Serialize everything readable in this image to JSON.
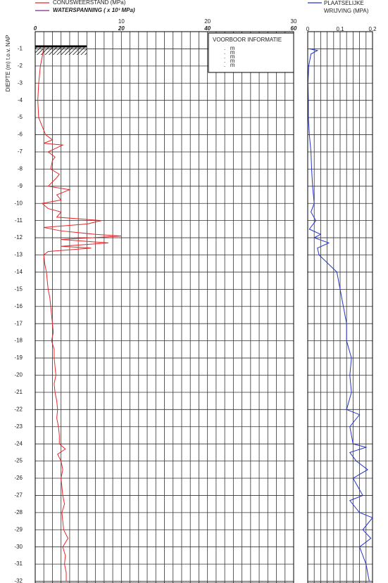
{
  "chart_data": [
    {
      "type": "line",
      "orientation": "vertical",
      "ylabel": "DIEPTE (m) t.o.v. NAP",
      "xlim": [
        0,
        30
      ],
      "xticks": [
        10,
        20,
        30
      ],
      "x2lim": [
        0,
        60
      ],
      "x2ticks": [
        0,
        20,
        40,
        60
      ],
      "xminor": [
        0,
        1,
        2,
        3,
        4,
        5,
        6,
        7,
        8,
        9,
        10,
        11,
        12,
        13,
        14,
        15,
        16,
        17,
        18,
        19,
        20,
        21,
        22,
        23,
        24,
        25,
        26,
        27,
        28,
        29,
        30
      ],
      "ylim": [
        0,
        -32.1
      ],
      "yticks": [
        -1,
        -2,
        -3,
        -4,
        -5,
        -6,
        -7,
        -8,
        -9,
        -10,
        -11,
        -12,
        -13,
        -14,
        -15,
        -16,
        -17,
        -18,
        -19,
        -20,
        -21,
        -22,
        -23,
        -24,
        -25,
        -26,
        -27,
        -28,
        -29,
        -30,
        -31,
        -32
      ],
      "show_ytick_labels": true,
      "series": [
        {
          "name": "CONUSWEERSTAND (MPa)",
          "color": "#e8262a",
          "y": [
            -0.9,
            -1.5,
            -2,
            -3,
            -4,
            -5,
            -5.5,
            -6,
            -6.3,
            -6.5,
            -6.6,
            -7,
            -7.3,
            -7.5,
            -8,
            -8.3,
            -8.5,
            -9,
            -9.2,
            -9.5,
            -9.8,
            -10,
            -10.3,
            -10.5,
            -10.8,
            -11,
            -11.2,
            -11.4,
            -11.6,
            -11.8,
            -11.9,
            -12.1,
            -12.3,
            -12.5,
            -12.6,
            -12.8,
            -13,
            -13.5,
            -14,
            -14.5,
            -15,
            -15.5,
            -16,
            -16.5,
            -17,
            -17.5,
            -18,
            -18.5,
            -19,
            -19.5,
            -20,
            -20.5,
            -21,
            -21.5,
            -22,
            -22.5,
            -23,
            -23.5,
            -24,
            -24.3,
            -24.6,
            -25,
            -25.5,
            -26,
            -26.5,
            -27,
            -27.5,
            -28,
            -28.5,
            -29,
            -29.5,
            -30,
            -30.5,
            -31,
            -31.5,
            -32
          ],
          "values": [
            1.0,
            0.8,
            0.6,
            0.4,
            0.3,
            0.4,
            0.8,
            1.2,
            2.0,
            1.0,
            3.2,
            1.5,
            2.3,
            2.0,
            1.8,
            2.8,
            2.5,
            1.5,
            4.0,
            2.5,
            3.0,
            0.8,
            1.5,
            3.0,
            2.5,
            7.7,
            6.0,
            1.0,
            3.0,
            7.0,
            10.0,
            3.0,
            8.5,
            3.0,
            6.5,
            1.5,
            1.0,
            1.1,
            1.3,
            1.4,
            1.5,
            1.7,
            1.8,
            1.9,
            2.0,
            2.1,
            1.9,
            2.2,
            2.2,
            2.3,
            2.4,
            2.2,
            2.3,
            2.5,
            2.6,
            2.5,
            2.7,
            2.8,
            2.8,
            3.5,
            2.6,
            3.0,
            3.2,
            3.0,
            3.1,
            3.2,
            3.4,
            3.1,
            3.2,
            3.3,
            3.8,
            3.2,
            3.5,
            3.4,
            3.6,
            3.6
          ]
        }
      ],
      "secondary_legend": {
        "label": "WATERSPANNING ( x 10³ MPa)",
        "color": "#7b2a8a"
      },
      "info_box": {
        "title": "VOORBOOR INFORMATIE",
        "rows": [
          ".   m",
          ".   m",
          ".   m",
          ".   m",
          ".   m"
        ]
      }
    },
    {
      "type": "line",
      "orientation": "vertical",
      "xlim": [
        0,
        0.2
      ],
      "xticks": [
        0,
        0.1,
        0.2
      ],
      "xminor": [
        0,
        0.02,
        0.04,
        0.06,
        0.08,
        0.1,
        0.12,
        0.14,
        0.16,
        0.18,
        0.2
      ],
      "ylim": [
        0,
        -32.1
      ],
      "yticks": [
        -1,
        -2,
        -3,
        -4,
        -5,
        -6,
        -7,
        -8,
        -9,
        -10,
        -11,
        -12,
        -13,
        -14,
        -15,
        -16,
        -17,
        -18,
        -19,
        -20,
        -21,
        -22,
        -23,
        -24,
        -25,
        -26,
        -27,
        -28,
        -29,
        -30,
        -31,
        -32
      ],
      "show_ytick_labels": false,
      "series": [
        {
          "name": [
            "PLAATSELIJKE",
            "WRIJVING (MPA)"
          ],
          "color": "#2233cc",
          "y": [
            -1,
            -1.1,
            -1.3,
            -2,
            -3,
            -4,
            -5,
            -6,
            -7,
            -8,
            -9,
            -10,
            -10.5,
            -11,
            -11.5,
            -11.8,
            -12,
            -12.3,
            -12.6,
            -13,
            -14,
            -15,
            -16,
            -17,
            -18,
            -19,
            -20,
            -21,
            -22,
            -22.3,
            -23,
            -24,
            -24.2,
            -24.5,
            -25,
            -25.5,
            -26,
            -27,
            -27.3,
            -28,
            -28.3,
            -29,
            -29.5,
            -30,
            -31,
            -32
          ],
          "values": [
            0.005,
            0.03,
            0.01,
            0.003,
            0.001,
            0.002,
            0.002,
            0.005,
            0.01,
            0.012,
            0.015,
            0.02,
            0.01,
            0.025,
            0.005,
            0.04,
            0.02,
            0.065,
            0.03,
            0.035,
            0.09,
            0.1,
            0.11,
            0.12,
            0.12,
            0.135,
            0.13,
            0.135,
            0.12,
            0.16,
            0.13,
            0.14,
            0.18,
            0.13,
            0.15,
            0.185,
            0.14,
            0.17,
            0.13,
            0.16,
            0.2,
            0.17,
            0.195,
            0.16,
            0.18,
            0.19
          ]
        }
      ]
    }
  ]
}
